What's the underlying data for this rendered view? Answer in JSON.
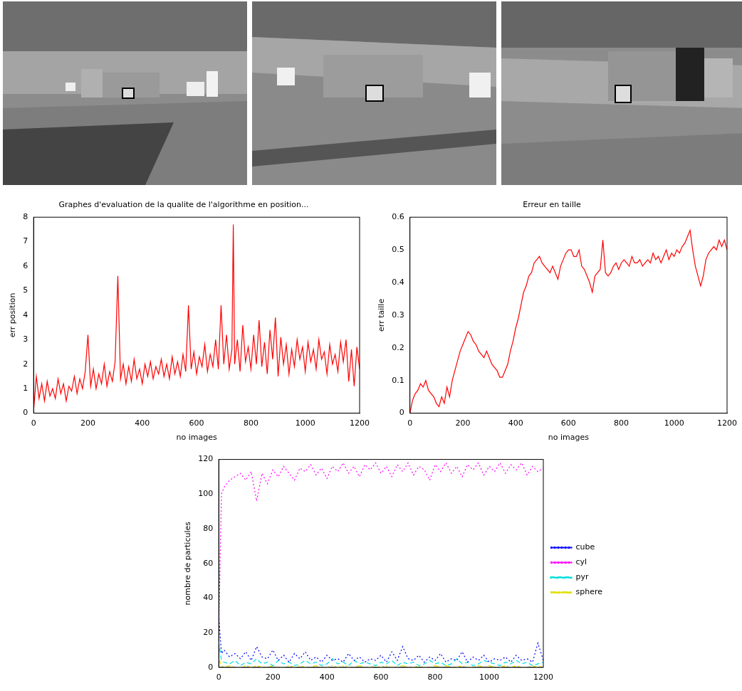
{
  "chart_data": [
    {
      "type": "line",
      "title": "Graphes d'evaluation de la qualite de l'algorithme en position...",
      "x_label": "no images",
      "y_label": "err position",
      "xlim": [
        0,
        1200
      ],
      "xticks": [
        0,
        200,
        400,
        600,
        800,
        1000,
        1200
      ],
      "ylim": [
        0,
        8
      ],
      "yticks": [
        0,
        1,
        2,
        3,
        4,
        5,
        6,
        7,
        8
      ],
      "grid": false,
      "color": "#ff0000",
      "line_style": "solid",
      "x": [
        0,
        10,
        20,
        30,
        40,
        50,
        60,
        70,
        80,
        90,
        100,
        110,
        120,
        130,
        140,
        150,
        160,
        170,
        180,
        190,
        200,
        210,
        220,
        230,
        240,
        250,
        260,
        270,
        280,
        290,
        300,
        310,
        320,
        330,
        340,
        350,
        360,
        370,
        380,
        390,
        400,
        410,
        420,
        430,
        440,
        450,
        460,
        470,
        480,
        490,
        500,
        510,
        520,
        530,
        540,
        550,
        560,
        570,
        580,
        590,
        600,
        610,
        620,
        630,
        640,
        650,
        660,
        670,
        680,
        690,
        700,
        710,
        720,
        730,
        735,
        740,
        750,
        760,
        770,
        780,
        790,
        800,
        810,
        820,
        830,
        840,
        850,
        860,
        870,
        880,
        890,
        900,
        910,
        920,
        930,
        940,
        950,
        960,
        970,
        980,
        990,
        1000,
        1010,
        1020,
        1030,
        1040,
        1050,
        1060,
        1070,
        1080,
        1090,
        1100,
        1110,
        1120,
        1130,
        1140,
        1150,
        1160,
        1170,
        1180,
        1190,
        1200
      ],
      "values": [
        0.1,
        1.5,
        0.6,
        1.2,
        0.5,
        1.3,
        0.7,
        1.0,
        0.6,
        1.4,
        0.8,
        1.2,
        0.5,
        1.1,
        0.9,
        1.5,
        0.8,
        1.4,
        1.0,
        1.7,
        3.2,
        1.1,
        1.8,
        1.0,
        1.6,
        1.2,
        2.0,
        1.1,
        1.7,
        1.3,
        2.1,
        5.6,
        1.4,
        2.0,
        1.2,
        1.9,
        1.3,
        2.2,
        1.4,
        1.8,
        1.2,
        2.0,
        1.5,
        2.1,
        1.4,
        1.9,
        1.6,
        2.2,
        1.5,
        2.0,
        1.4,
        2.3,
        1.6,
        2.1,
        1.5,
        2.4,
        1.7,
        4.4,
        1.8,
        2.5,
        1.6,
        2.3,
        1.9,
        2.8,
        1.7,
        2.4,
        1.9,
        3.0,
        1.8,
        4.4,
        2.0,
        3.2,
        1.8,
        2.6,
        7.7,
        2.0,
        3.0,
        1.7,
        3.6,
        2.1,
        2.7,
        1.8,
        3.2,
        2.0,
        3.8,
        1.9,
        2.9,
        1.6,
        3.4,
        2.2,
        3.9,
        1.5,
        3.1,
        2.0,
        2.8,
        1.6,
        2.6,
        1.9,
        3.0,
        2.2,
        2.7,
        1.7,
        2.9,
        2.1,
        2.6,
        1.8,
        3.0,
        2.2,
        2.5,
        1.6,
        2.8,
        2.0,
        2.4,
        1.7,
        2.9,
        2.1,
        3.0,
        1.3,
        2.6,
        1.1,
        2.7,
        1.8
      ]
    },
    {
      "type": "line",
      "title": "Erreur en taille",
      "x_label": "no images",
      "y_label": "err taille",
      "xlim": [
        0,
        1200
      ],
      "xticks": [
        0,
        200,
        400,
        600,
        800,
        1000,
        1200
      ],
      "ylim": [
        0,
        0.6
      ],
      "yticks": [
        0,
        0.1,
        0.2,
        0.3,
        0.4,
        0.5,
        0.6
      ],
      "grid": false,
      "color": "#ff0000",
      "line_style": "solid",
      "x": [
        0,
        10,
        20,
        30,
        40,
        50,
        60,
        70,
        80,
        90,
        100,
        110,
        120,
        130,
        140,
        150,
        160,
        170,
        180,
        190,
        200,
        210,
        220,
        230,
        240,
        250,
        260,
        270,
        280,
        290,
        300,
        310,
        320,
        330,
        340,
        350,
        360,
        370,
        380,
        390,
        400,
        410,
        420,
        430,
        440,
        450,
        460,
        470,
        480,
        490,
        500,
        510,
        520,
        530,
        540,
        550,
        560,
        570,
        580,
        590,
        600,
        610,
        620,
        630,
        640,
        650,
        660,
        670,
        680,
        690,
        700,
        710,
        720,
        730,
        740,
        750,
        760,
        770,
        780,
        790,
        800,
        810,
        820,
        830,
        840,
        850,
        860,
        870,
        880,
        890,
        900,
        910,
        920,
        930,
        940,
        950,
        960,
        970,
        980,
        990,
        1000,
        1010,
        1020,
        1030,
        1040,
        1050,
        1060,
        1070,
        1080,
        1090,
        1100,
        1110,
        1120,
        1130,
        1140,
        1150,
        1160,
        1170,
        1180,
        1190,
        1200
      ],
      "values": [
        0,
        0.04,
        0.06,
        0.07,
        0.09,
        0.08,
        0.1,
        0.07,
        0.06,
        0.05,
        0.03,
        0.02,
        0.05,
        0.03,
        0.08,
        0.05,
        0.1,
        0.13,
        0.16,
        0.19,
        0.21,
        0.23,
        0.25,
        0.24,
        0.22,
        0.21,
        0.19,
        0.18,
        0.17,
        0.19,
        0.17,
        0.15,
        0.14,
        0.13,
        0.11,
        0.11,
        0.13,
        0.15,
        0.19,
        0.22,
        0.26,
        0.29,
        0.33,
        0.37,
        0.39,
        0.42,
        0.43,
        0.46,
        0.47,
        0.48,
        0.46,
        0.45,
        0.44,
        0.43,
        0.45,
        0.43,
        0.41,
        0.45,
        0.47,
        0.49,
        0.5,
        0.5,
        0.48,
        0.48,
        0.5,
        0.45,
        0.44,
        0.42,
        0.4,
        0.37,
        0.42,
        0.43,
        0.44,
        0.53,
        0.43,
        0.42,
        0.43,
        0.45,
        0.46,
        0.44,
        0.46,
        0.47,
        0.46,
        0.45,
        0.48,
        0.46,
        0.46,
        0.47,
        0.45,
        0.46,
        0.47,
        0.46,
        0.49,
        0.47,
        0.48,
        0.46,
        0.48,
        0.5,
        0.47,
        0.49,
        0.48,
        0.5,
        0.49,
        0.51,
        0.52,
        0.54,
        0.56,
        0.5,
        0.45,
        0.42,
        0.39,
        0.42,
        0.47,
        0.49,
        0.5,
        0.51,
        0.5,
        0.53,
        0.51,
        0.53,
        0.5
      ]
    },
    {
      "type": "line",
      "y_label": "nombre de particules",
      "xlim": [
        0,
        1200
      ],
      "xticks": [
        0,
        200,
        400,
        600,
        800,
        1000,
        1200
      ],
      "ylim": [
        0,
        120
      ],
      "yticks": [
        0,
        20,
        40,
        60,
        80,
        100,
        120
      ],
      "grid": false,
      "legend": "right",
      "x": [
        0,
        10,
        20,
        40,
        60,
        80,
        100,
        120,
        140,
        160,
        180,
        200,
        220,
        240,
        260,
        280,
        300,
        320,
        340,
        360,
        380,
        400,
        420,
        440,
        460,
        480,
        500,
        520,
        540,
        560,
        580,
        600,
        620,
        640,
        660,
        680,
        700,
        720,
        740,
        760,
        780,
        800,
        820,
        840,
        860,
        880,
        900,
        920,
        940,
        960,
        980,
        1000,
        1020,
        1040,
        1060,
        1080,
        1100,
        1120,
        1140,
        1160,
        1180,
        1200
      ],
      "series": [
        {
          "name": "cube",
          "color": "#0000ff",
          "line_style": "dotted",
          "values": [
            30,
            8,
            10,
            6,
            8,
            5,
            9,
            4,
            12,
            6,
            5,
            10,
            4,
            7,
            3,
            8,
            5,
            9,
            4,
            6,
            3,
            7,
            4,
            5,
            3,
            8,
            4,
            6,
            3,
            5,
            4,
            7,
            3,
            9,
            4,
            12,
            5,
            4,
            7,
            3,
            6,
            4,
            8,
            3,
            5,
            4,
            9,
            3,
            6,
            4,
            7,
            3,
            5,
            4,
            6,
            3,
            7,
            4,
            5,
            3,
            14,
            4
          ]
        },
        {
          "name": "cyl",
          "color": "#ff00ff",
          "line_style": "dotted",
          "values": [
            20,
            100,
            104,
            108,
            110,
            112,
            108,
            113,
            96,
            112,
            106,
            114,
            110,
            116,
            112,
            108,
            115,
            113,
            117,
            111,
            115,
            109,
            116,
            113,
            118,
            112,
            116,
            110,
            117,
            114,
            118,
            112,
            116,
            110,
            117,
            113,
            118,
            111,
            116,
            114,
            108,
            117,
            113,
            118,
            112,
            116,
            110,
            117,
            114,
            118,
            111,
            116,
            113,
            118,
            112,
            117,
            114,
            118,
            111,
            116,
            113,
            115
          ]
        },
        {
          "name": "pyr",
          "color": "#00e0e0",
          "line_style": "dashed",
          "values": [
            15,
            4,
            3,
            2,
            4,
            1,
            3,
            2,
            5,
            2,
            3,
            1,
            4,
            2,
            3,
            1,
            2,
            4,
            2,
            3,
            1,
            2,
            5,
            2,
            3,
            1,
            4,
            2,
            3,
            2,
            1,
            3,
            2,
            4,
            1,
            3,
            2,
            3,
            1,
            2,
            4,
            2,
            3,
            1,
            2,
            5,
            2,
            3,
            1,
            2,
            4,
            3,
            2,
            1,
            3,
            2,
            4,
            2,
            3,
            1,
            2,
            3
          ]
        },
        {
          "name": "sphere",
          "color": "#e0e000",
          "line_style": "dashdot",
          "values": [
            5,
            1,
            0,
            1,
            0,
            0,
            1,
            0,
            1,
            0,
            0,
            1,
            0,
            0,
            1,
            0,
            1,
            0,
            0,
            1,
            0,
            0,
            1,
            0,
            1,
            0,
            0,
            1,
            0,
            0,
            1,
            0,
            1,
            0,
            0,
            1,
            0,
            0,
            1,
            0,
            0,
            1,
            0,
            1,
            0,
            0,
            1,
            0,
            0,
            1,
            0,
            1,
            0,
            0,
            1,
            0,
            1,
            0,
            0,
            1,
            0,
            1
          ]
        }
      ]
    }
  ]
}
